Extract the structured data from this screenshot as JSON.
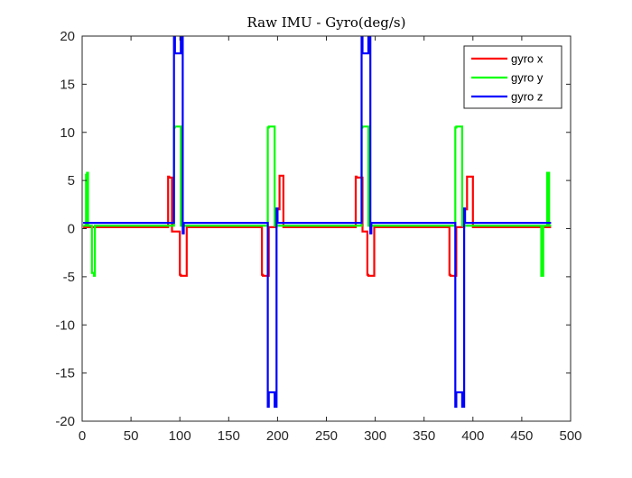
{
  "chart_data": {
    "type": "line",
    "title": "Raw IMU - Gyro(deg/s)",
    "xlabel": "",
    "ylabel": "",
    "xlim": [
      0,
      500
    ],
    "ylim": [
      -20,
      20
    ],
    "xticks": [
      0,
      50,
      100,
      150,
      200,
      250,
      300,
      350,
      400,
      450,
      500
    ],
    "yticks": [
      -20,
      -15,
      -10,
      -5,
      0,
      5,
      10,
      15,
      20
    ],
    "grid": false,
    "legend_position": "top-right",
    "series": [
      {
        "name": "gyro x",
        "color": "#ff0000",
        "x": [
          1,
          88,
          88,
          89,
          89,
          92,
          92,
          100,
          100,
          101,
          101,
          107,
          107,
          108,
          108,
          184,
          184,
          185,
          185,
          191,
          191,
          199,
          199,
          202,
          202,
          206,
          206,
          207,
          207,
          280,
          280,
          281,
          281,
          287,
          287,
          292,
          292,
          293,
          293,
          299,
          299,
          300,
          300,
          376,
          376,
          377,
          377,
          383,
          383,
          391,
          391,
          394,
          394,
          400,
          400,
          480
        ],
        "y": [
          0.15,
          0.15,
          5.4,
          5.4,
          5.3,
          5.3,
          -0.3,
          -0.3,
          -4.8,
          -4.8,
          -4.9,
          -4.9,
          0.15,
          0.15,
          0.15,
          0.15,
          -4.8,
          -4.8,
          -4.9,
          -4.9,
          0.15,
          0.15,
          2.0,
          2.0,
          5.5,
          5.5,
          0.15,
          0.15,
          0.15,
          0.15,
          5.4,
          5.4,
          5.3,
          5.3,
          -0.3,
          -0.3,
          -4.8,
          -4.8,
          -4.9,
          -4.9,
          0.15,
          0.15,
          0.15,
          0.15,
          -4.8,
          -4.8,
          -4.9,
          -4.9,
          0.15,
          0.15,
          2.0,
          2.0,
          5.4,
          5.4,
          0.15,
          0.15
        ]
      },
      {
        "name": "gyro y",
        "color": "#00ff00",
        "x": [
          1,
          4,
          4,
          5,
          5,
          6,
          6,
          10,
          10,
          12,
          12,
          13,
          13,
          94,
          94,
          95,
          95,
          101,
          101,
          190,
          190,
          191,
          191,
          197,
          197,
          286,
          286,
          287,
          287,
          293,
          293,
          382,
          382,
          383,
          383,
          389,
          389,
          470,
          470,
          472,
          472,
          476,
          476,
          478,
          478,
          480
        ],
        "y": [
          0.3,
          0.3,
          5.6,
          5.6,
          5.8,
          5.8,
          0.3,
          0.3,
          -4.6,
          -4.6,
          -4.9,
          -4.9,
          0.3,
          0.3,
          10.5,
          10.5,
          10.6,
          10.6,
          0.3,
          0.3,
          10.5,
          10.5,
          10.6,
          10.6,
          0.3,
          0.3,
          10.5,
          10.5,
          10.6,
          10.6,
          0.3,
          0.3,
          10.5,
          10.5,
          10.6,
          10.6,
          0.3,
          0.3,
          -4.9,
          -4.9,
          0.3,
          0.3,
          5.8,
          5.8,
          0.3,
          0.3
        ]
      },
      {
        "name": "gyro z",
        "color": "#0000ff",
        "x": [
          1,
          94,
          94,
          95,
          95,
          96,
          96,
          101,
          101,
          103,
          103,
          104,
          104,
          190,
          190,
          191,
          191,
          192,
          192,
          197,
          197,
          199,
          199,
          200,
          200,
          286,
          286,
          287,
          287,
          288,
          288,
          293,
          293,
          295,
          295,
          296,
          296,
          382,
          382,
          383,
          383,
          384,
          384,
          389,
          389,
          391,
          391,
          392,
          392,
          480
        ],
        "y": [
          0.6,
          0.6,
          20,
          20,
          18.2,
          18.2,
          18.2,
          18.2,
          20,
          20,
          -0.5,
          -0.5,
          0.6,
          0.6,
          -18.5,
          -18.5,
          -17,
          -17,
          -17,
          -17,
          -18.5,
          -18.5,
          2.1,
          2.1,
          0.6,
          0.6,
          20,
          20,
          18.2,
          18.2,
          18.2,
          18.2,
          20,
          20,
          -0.5,
          -0.5,
          0.6,
          0.6,
          -18.5,
          -18.5,
          -17,
          -17,
          -17,
          -17,
          -18.5,
          -18.5,
          2.1,
          2.1,
          0.6,
          0.6
        ]
      }
    ]
  }
}
